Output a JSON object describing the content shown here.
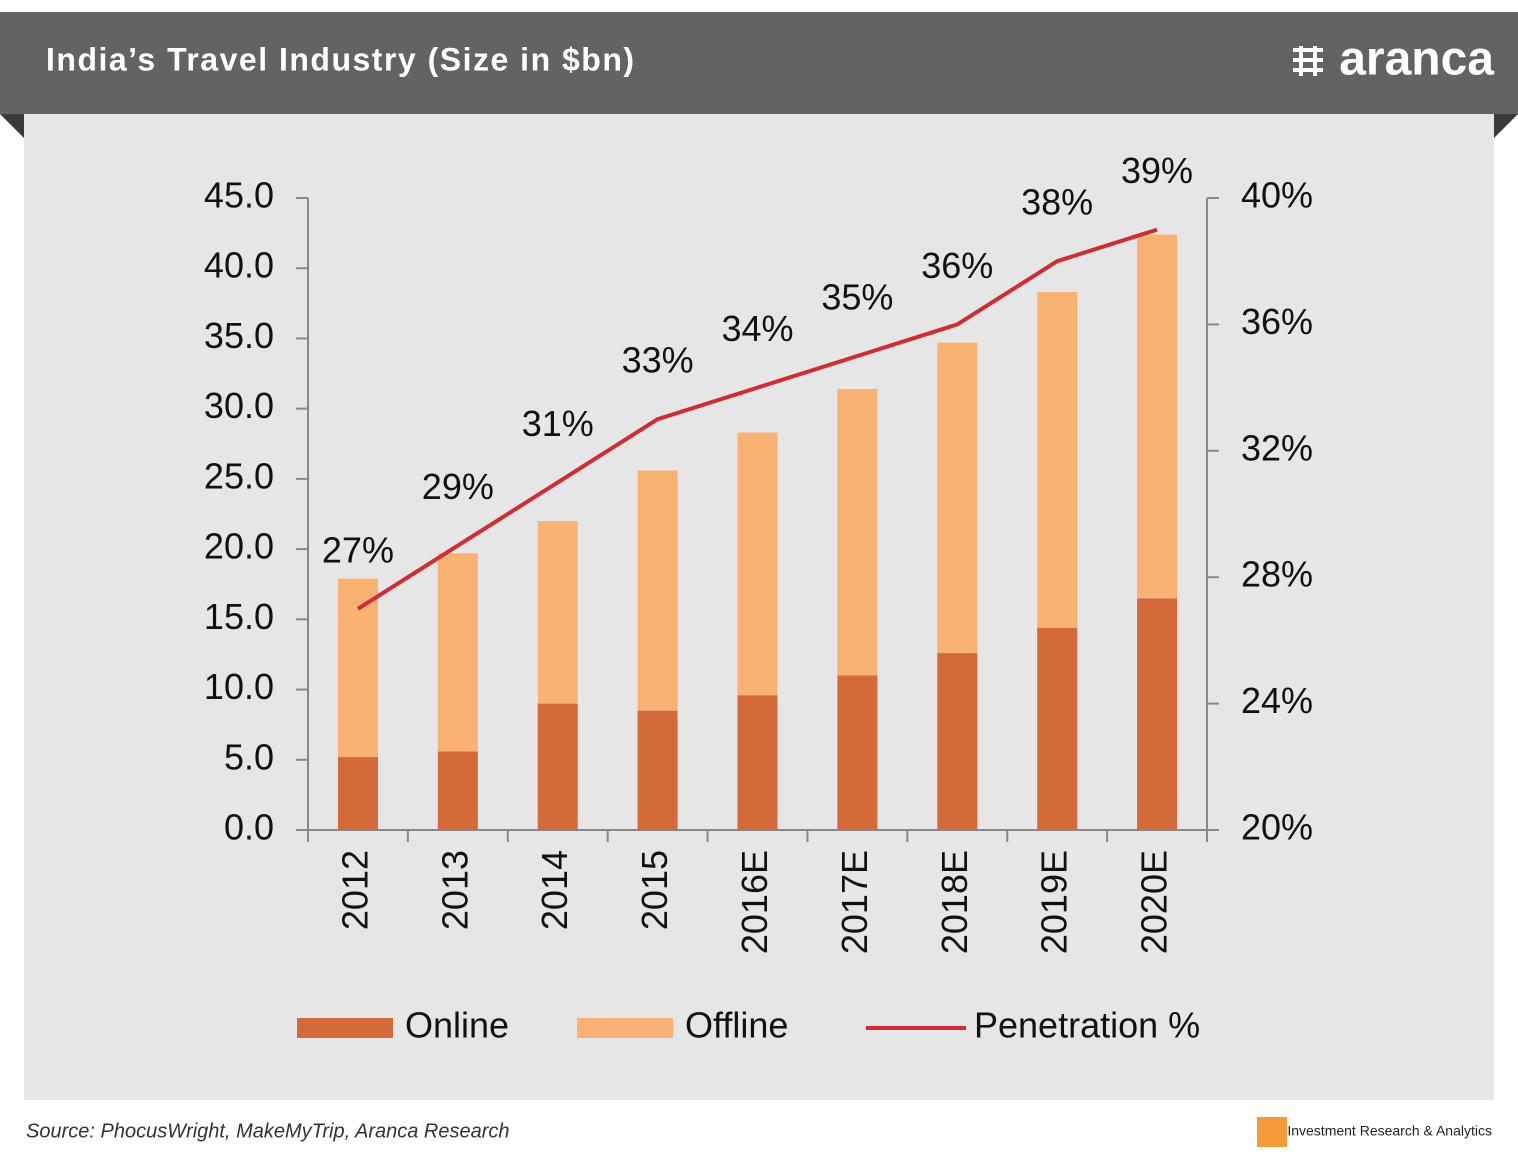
{
  "chart_data": {
    "type": "bar",
    "stacked": true,
    "title": "India’s Travel Industry (Size in $bn)",
    "categories": [
      "2012",
      "2013",
      "2014",
      "2015",
      "2016E",
      "2017E",
      "2018E",
      "2019E",
      "2020E"
    ],
    "series": [
      {
        "name": "Online",
        "color": "#d4693a",
        "values": [
          5.2,
          5.6,
          9.0,
          8.5,
          9.6,
          11.0,
          12.6,
          14.4,
          16.5
        ]
      },
      {
        "name": "Offline",
        "color": "#f9b274",
        "values": [
          12.7,
          14.1,
          13.0,
          17.1,
          18.7,
          20.4,
          22.1,
          23.9,
          25.9
        ]
      },
      {
        "name": "Penetration %",
        "type": "line",
        "axis": "y2",
        "color": "#d12c33",
        "values": [
          27,
          29,
          31,
          33,
          34,
          35,
          36,
          38,
          39
        ],
        "value_labels": [
          "27%",
          "29%",
          "31%",
          "33%",
          "34%",
          "35%",
          "36%",
          "38%",
          "39%"
        ]
      }
    ],
    "ylim": [
      0,
      45
    ],
    "yticks": [
      {
        "value": 0,
        "label": "0.0"
      },
      {
        "value": 5,
        "label": "5.0"
      },
      {
        "value": 10,
        "label": "10.0"
      },
      {
        "value": 15,
        "label": "15.0"
      },
      {
        "value": 20,
        "label": "20.0"
      },
      {
        "value": 25,
        "label": "25.0"
      },
      {
        "value": 30,
        "label": "30.0"
      },
      {
        "value": 35,
        "label": "35.0"
      },
      {
        "value": 40,
        "label": "40.0"
      },
      {
        "value": 45,
        "label": "45.0"
      }
    ],
    "y2lim": [
      20,
      40
    ],
    "y2ticks": [
      {
        "value": 20,
        "label": "20%"
      },
      {
        "value": 24,
        "label": "24%"
      },
      {
        "value": 28,
        "label": "28%"
      },
      {
        "value": 32,
        "label": "32%"
      },
      {
        "value": 36,
        "label": "36%"
      },
      {
        "value": 40,
        "label": "40%"
      }
    ],
    "legend": "bottom",
    "grid": false
  },
  "header": {
    "logo": "aranca"
  },
  "footer": {
    "source": "Source: PhocusWright, MakeMyTrip, Aranca Research",
    "tagline": "Investment Research & Analytics"
  }
}
